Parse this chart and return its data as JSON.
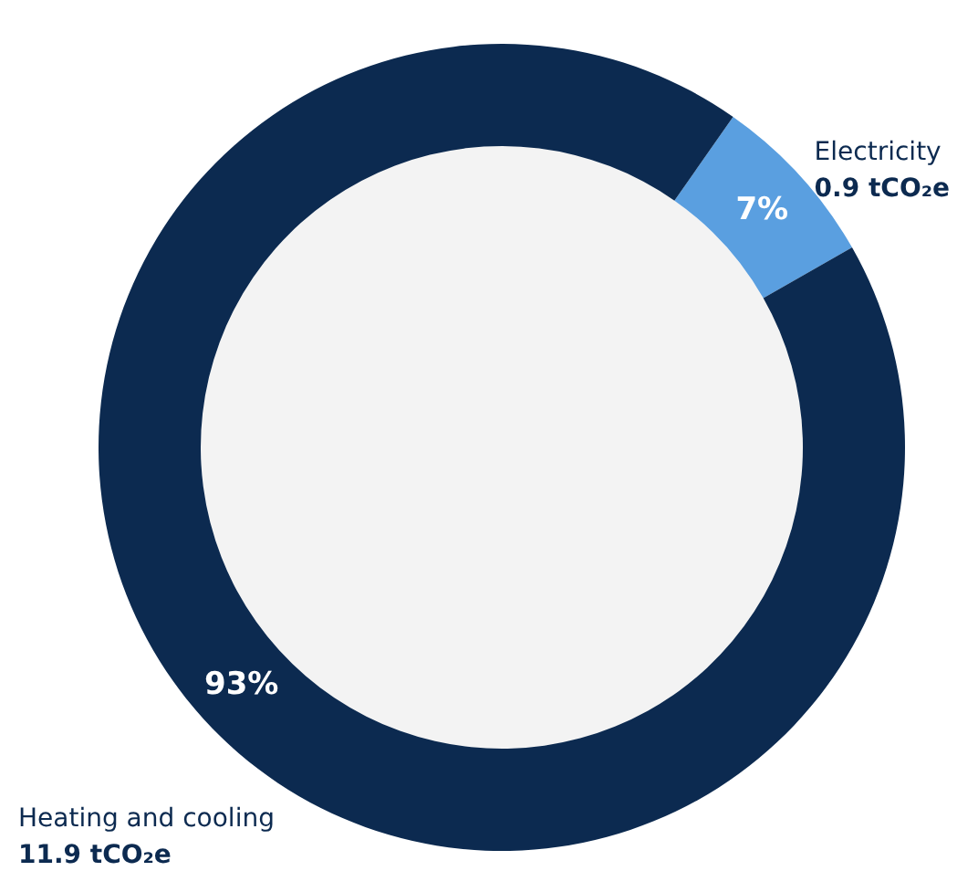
{
  "chart_data": {
    "type": "donut",
    "categories": [
      "Electricity",
      "Heating and cooling"
    ],
    "values": [
      0.9,
      11.9
    ],
    "colors": [
      "#5a9fe0",
      "#0c2a50"
    ],
    "value_labels": [
      "0.9 tCO₂e",
      "11.9 tCO₂e"
    ],
    "annotations": [
      {
        "text": "7%",
        "x": "Electricity"
      },
      {
        "text": "93%",
        "x": "Heating and cooling"
      }
    ],
    "legend": false
  }
}
